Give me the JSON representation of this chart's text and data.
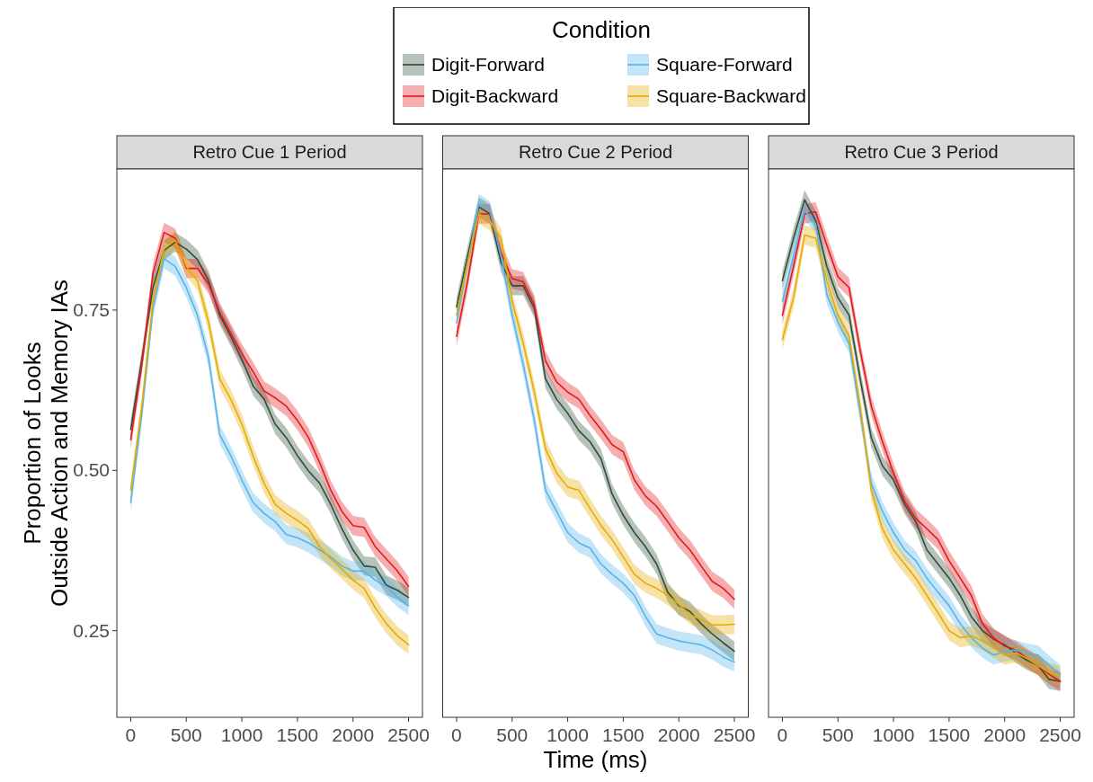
{
  "chart_data": [
    {
      "type": "line",
      "title": "Retro Cue 1 Period",
      "ylabel": "Proportion of Looks\nOutside Action and Memory IAs",
      "legend_title": "Condition",
      "legend": "top",
      "x": [
        0,
        100,
        200,
        300,
        400,
        500,
        600,
        700,
        800,
        900,
        1000,
        1100,
        1200,
        1300,
        1400,
        1500,
        1600,
        1700,
        1800,
        1900,
        2000,
        2100,
        2200,
        2300,
        2400,
        2500
      ],
      "xlim": [
        -125,
        2625
      ],
      "xticks": [
        0,
        500,
        1000,
        1500,
        2000,
        2500
      ],
      "ylim": [
        0.115,
        0.97
      ],
      "yticks": [
        {
          "value": 0.25,
          "label": "0.25"
        },
        {
          "value": 0.5,
          "label": "0.50"
        },
        {
          "value": 0.75,
          "label": "0.75"
        }
      ],
      "series": [
        {
          "name": "Digit-Forward",
          "color": "#2f4f3a",
          "values": [
            0.564,
            0.673,
            0.785,
            0.843,
            0.856,
            0.845,
            0.829,
            0.796,
            0.742,
            0.709,
            0.673,
            0.632,
            0.611,
            0.572,
            0.551,
            0.523,
            0.499,
            0.48,
            0.447,
            0.409,
            0.376,
            0.351,
            0.349,
            0.321,
            0.313,
            0.302
          ],
          "lower": [
            0.549,
            0.658,
            0.77,
            0.828,
            0.841,
            0.83,
            0.814,
            0.781,
            0.727,
            0.694,
            0.658,
            0.617,
            0.596,
            0.557,
            0.536,
            0.508,
            0.484,
            0.465,
            0.432,
            0.394,
            0.361,
            0.336,
            0.334,
            0.306,
            0.298,
            0.287
          ],
          "upper": [
            0.579,
            0.688,
            0.8,
            0.858,
            0.871,
            0.86,
            0.844,
            0.811,
            0.757,
            0.724,
            0.688,
            0.647,
            0.626,
            0.587,
            0.566,
            0.538,
            0.514,
            0.495,
            0.462,
            0.424,
            0.391,
            0.366,
            0.364,
            0.336,
            0.328,
            0.317
          ]
        },
        {
          "name": "Digit-Backward",
          "color": "#e31a1c",
          "values": [
            0.548,
            0.665,
            0.807,
            0.871,
            0.862,
            0.815,
            0.815,
            0.791,
            0.747,
            0.714,
            0.682,
            0.654,
            0.624,
            0.613,
            0.6,
            0.578,
            0.551,
            0.512,
            0.469,
            0.436,
            0.414,
            0.411,
            0.381,
            0.362,
            0.343,
            0.319
          ],
          "lower": [
            0.533,
            0.65,
            0.792,
            0.856,
            0.847,
            0.8,
            0.8,
            0.776,
            0.732,
            0.699,
            0.667,
            0.639,
            0.609,
            0.598,
            0.585,
            0.563,
            0.536,
            0.497,
            0.454,
            0.421,
            0.399,
            0.396,
            0.366,
            0.347,
            0.328,
            0.304
          ],
          "upper": [
            0.563,
            0.68,
            0.822,
            0.886,
            0.877,
            0.83,
            0.83,
            0.806,
            0.762,
            0.729,
            0.697,
            0.669,
            0.639,
            0.628,
            0.615,
            0.593,
            0.566,
            0.527,
            0.484,
            0.451,
            0.429,
            0.426,
            0.396,
            0.377,
            0.358,
            0.334
          ]
        },
        {
          "name": "Square-Forward",
          "color": "#56b4e9",
          "values": [
            0.45,
            0.589,
            0.753,
            0.83,
            0.818,
            0.785,
            0.742,
            0.676,
            0.556,
            0.523,
            0.485,
            0.45,
            0.433,
            0.42,
            0.4,
            0.395,
            0.387,
            0.376,
            0.365,
            0.351,
            0.343,
            0.343,
            0.329,
            0.319,
            0.302,
            0.289
          ],
          "lower": [
            0.435,
            0.574,
            0.738,
            0.815,
            0.803,
            0.77,
            0.727,
            0.661,
            0.541,
            0.508,
            0.47,
            0.435,
            0.418,
            0.405,
            0.385,
            0.38,
            0.372,
            0.361,
            0.35,
            0.336,
            0.328,
            0.328,
            0.314,
            0.304,
            0.287,
            0.274
          ],
          "upper": [
            0.465,
            0.604,
            0.768,
            0.845,
            0.833,
            0.8,
            0.757,
            0.691,
            0.571,
            0.538,
            0.5,
            0.465,
            0.448,
            0.435,
            0.415,
            0.41,
            0.402,
            0.391,
            0.38,
            0.366,
            0.358,
            0.358,
            0.344,
            0.334,
            0.317,
            0.304
          ]
        },
        {
          "name": "Square-Backward",
          "color": "#e6ab02",
          "values": [
            0.469,
            0.6,
            0.764,
            0.845,
            0.859,
            0.818,
            0.796,
            0.731,
            0.643,
            0.611,
            0.572,
            0.523,
            0.48,
            0.447,
            0.433,
            0.422,
            0.409,
            0.381,
            0.362,
            0.346,
            0.329,
            0.316,
            0.286,
            0.261,
            0.242,
            0.228
          ],
          "lower": [
            0.454,
            0.585,
            0.749,
            0.83,
            0.844,
            0.803,
            0.781,
            0.716,
            0.628,
            0.596,
            0.557,
            0.508,
            0.465,
            0.432,
            0.418,
            0.407,
            0.394,
            0.366,
            0.347,
            0.331,
            0.314,
            0.301,
            0.271,
            0.246,
            0.227,
            0.213
          ],
          "upper": [
            0.484,
            0.615,
            0.779,
            0.86,
            0.874,
            0.833,
            0.811,
            0.746,
            0.658,
            0.626,
            0.587,
            0.538,
            0.495,
            0.462,
            0.448,
            0.437,
            0.424,
            0.396,
            0.377,
            0.361,
            0.344,
            0.331,
            0.301,
            0.276,
            0.257,
            0.243
          ]
        }
      ]
    },
    {
      "type": "line",
      "title": "Retro Cue 2 Period",
      "xlabel": "Time (ms)",
      "tick_labels": "x",
      "x": [
        0,
        100,
        200,
        300,
        400,
        500,
        600,
        700,
        800,
        900,
        1000,
        1100,
        1200,
        1300,
        1400,
        1500,
        1600,
        1700,
        1800,
        1900,
        2000,
        2100,
        2200,
        2300,
        2400,
        2500
      ],
      "xlim": [
        -125,
        2625
      ],
      "xticks": [
        0,
        500,
        1000,
        1500,
        2000,
        2500
      ],
      "ylim": [
        0.115,
        0.97
      ],
      "series": [
        {
          "color": "#2f4f3a",
          "values": [
            0.755,
            0.835,
            0.911,
            0.9,
            0.824,
            0.788,
            0.788,
            0.753,
            0.643,
            0.611,
            0.589,
            0.562,
            0.545,
            0.518,
            0.463,
            0.43,
            0.403,
            0.381,
            0.354,
            0.31,
            0.289,
            0.28,
            0.261,
            0.245,
            0.231,
            0.218
          ],
          "lower": [
            0.74,
            0.82,
            0.896,
            0.885,
            0.809,
            0.773,
            0.773,
            0.738,
            0.628,
            0.596,
            0.574,
            0.547,
            0.53,
            0.503,
            0.448,
            0.415,
            0.388,
            0.366,
            0.339,
            0.295,
            0.274,
            0.265,
            0.246,
            0.23,
            0.216,
            0.203
          ],
          "upper": [
            0.77,
            0.85,
            0.926,
            0.915,
            0.839,
            0.803,
            0.803,
            0.768,
            0.658,
            0.626,
            0.604,
            0.577,
            0.56,
            0.533,
            0.478,
            0.445,
            0.418,
            0.396,
            0.369,
            0.325,
            0.304,
            0.295,
            0.276,
            0.26,
            0.246,
            0.233
          ]
        },
        {
          "color": "#e31a1c",
          "values": [
            0.709,
            0.796,
            0.9,
            0.9,
            0.84,
            0.799,
            0.794,
            0.758,
            0.671,
            0.638,
            0.622,
            0.611,
            0.586,
            0.564,
            0.54,
            0.529,
            0.485,
            0.46,
            0.444,
            0.42,
            0.395,
            0.376,
            0.351,
            0.327,
            0.316,
            0.299
          ],
          "lower": [
            0.694,
            0.781,
            0.885,
            0.885,
            0.825,
            0.784,
            0.779,
            0.743,
            0.656,
            0.623,
            0.607,
            0.596,
            0.571,
            0.549,
            0.525,
            0.514,
            0.47,
            0.445,
            0.429,
            0.405,
            0.38,
            0.361,
            0.336,
            0.312,
            0.301,
            0.284
          ],
          "upper": [
            0.724,
            0.811,
            0.915,
            0.915,
            0.855,
            0.814,
            0.809,
            0.773,
            0.686,
            0.653,
            0.637,
            0.626,
            0.601,
            0.579,
            0.555,
            0.544,
            0.5,
            0.475,
            0.459,
            0.435,
            0.41,
            0.391,
            0.366,
            0.342,
            0.331,
            0.314
          ]
        },
        {
          "color": "#56b4e9",
          "values": [
            0.73,
            0.824,
            0.916,
            0.905,
            0.835,
            0.742,
            0.665,
            0.578,
            0.469,
            0.436,
            0.403,
            0.387,
            0.379,
            0.354,
            0.338,
            0.324,
            0.305,
            0.272,
            0.245,
            0.239,
            0.234,
            0.231,
            0.228,
            0.22,
            0.209,
            0.201
          ],
          "lower": [
            0.727,
            0.809,
            0.901,
            0.89,
            0.82,
            0.727,
            0.65,
            0.563,
            0.454,
            0.421,
            0.388,
            0.372,
            0.364,
            0.339,
            0.323,
            0.309,
            0.29,
            0.257,
            0.23,
            0.224,
            0.219,
            0.216,
            0.213,
            0.205,
            0.194,
            0.186
          ],
          "upper": [
            0.757,
            0.839,
            0.931,
            0.92,
            0.85,
            0.757,
            0.68,
            0.593,
            0.484,
            0.451,
            0.418,
            0.402,
            0.394,
            0.369,
            0.353,
            0.339,
            0.32,
            0.287,
            0.26,
            0.254,
            0.249,
            0.246,
            0.243,
            0.235,
            0.224,
            0.216
          ]
        },
        {
          "color": "#e6ab02",
          "values": [
            0.742,
            0.824,
            0.9,
            0.889,
            0.862,
            0.764,
            0.698,
            0.622,
            0.534,
            0.496,
            0.474,
            0.469,
            0.441,
            0.414,
            0.392,
            0.365,
            0.338,
            0.324,
            0.316,
            0.305,
            0.291,
            0.275,
            0.267,
            0.259,
            0.259,
            0.26
          ],
          "lower": [
            0.727,
            0.809,
            0.885,
            0.874,
            0.847,
            0.749,
            0.683,
            0.607,
            0.519,
            0.481,
            0.459,
            0.454,
            0.426,
            0.399,
            0.377,
            0.35,
            0.323,
            0.309,
            0.301,
            0.29,
            0.276,
            0.26,
            0.252,
            0.244,
            0.244,
            0.245
          ],
          "upper": [
            0.757,
            0.839,
            0.915,
            0.904,
            0.877,
            0.779,
            0.713,
            0.637,
            0.549,
            0.511,
            0.489,
            0.484,
            0.456,
            0.429,
            0.407,
            0.38,
            0.353,
            0.339,
            0.331,
            0.32,
            0.306,
            0.29,
            0.282,
            0.274,
            0.274,
            0.275
          ]
        }
      ]
    },
    {
      "type": "line",
      "title": "Retro Cue 3 Period",
      "tick_labels": "x",
      "x": [
        0,
        100,
        200,
        300,
        400,
        500,
        600,
        700,
        800,
        900,
        1000,
        1100,
        1200,
        1300,
        1400,
        1500,
        1600,
        1700,
        1800,
        1900,
        2000,
        2100,
        2200,
        2300,
        2400,
        2500
      ],
      "xlim": [
        -125,
        2625
      ],
      "xticks": [
        0,
        500,
        1000,
        1500,
        2000,
        2500
      ],
      "ylim": [
        0.115,
        0.97
      ],
      "series": [
        {
          "color": "#2f4f3a",
          "values": [
            0.796,
            0.862,
            0.922,
            0.889,
            0.818,
            0.769,
            0.742,
            0.643,
            0.551,
            0.507,
            0.485,
            0.447,
            0.42,
            0.376,
            0.354,
            0.332,
            0.305,
            0.272,
            0.25,
            0.237,
            0.228,
            0.215,
            0.204,
            0.196,
            0.174,
            0.171
          ],
          "lower": [
            0.781,
            0.847,
            0.907,
            0.874,
            0.803,
            0.754,
            0.727,
            0.628,
            0.536,
            0.492,
            0.47,
            0.432,
            0.405,
            0.361,
            0.339,
            0.317,
            0.29,
            0.257,
            0.235,
            0.222,
            0.213,
            0.2,
            0.189,
            0.181,
            0.159,
            0.156
          ],
          "upper": [
            0.811,
            0.877,
            0.937,
            0.904,
            0.833,
            0.784,
            0.757,
            0.658,
            0.566,
            0.522,
            0.5,
            0.462,
            0.435,
            0.391,
            0.369,
            0.347,
            0.32,
            0.287,
            0.265,
            0.252,
            0.243,
            0.23,
            0.219,
            0.211,
            0.189,
            0.186
          ]
        },
        {
          "color": "#e31a1c",
          "values": [
            0.742,
            0.818,
            0.9,
            0.903,
            0.851,
            0.802,
            0.785,
            0.687,
            0.6,
            0.545,
            0.496,
            0.452,
            0.425,
            0.409,
            0.392,
            0.359,
            0.332,
            0.305,
            0.261,
            0.239,
            0.226,
            0.22,
            0.207,
            0.196,
            0.182,
            0.171
          ],
          "lower": [
            0.727,
            0.803,
            0.885,
            0.888,
            0.836,
            0.787,
            0.77,
            0.672,
            0.585,
            0.53,
            0.481,
            0.437,
            0.41,
            0.394,
            0.377,
            0.344,
            0.317,
            0.29,
            0.246,
            0.224,
            0.211,
            0.205,
            0.192,
            0.181,
            0.167,
            0.156
          ],
          "upper": [
            0.757,
            0.833,
            0.915,
            0.918,
            0.866,
            0.817,
            0.8,
            0.702,
            0.615,
            0.56,
            0.511,
            0.467,
            0.44,
            0.424,
            0.407,
            0.374,
            0.347,
            0.32,
            0.276,
            0.254,
            0.241,
            0.235,
            0.222,
            0.211,
            0.197,
            0.186
          ]
        },
        {
          "color": "#56b4e9",
          "values": [
            0.764,
            0.835,
            0.906,
            0.884,
            0.774,
            0.731,
            0.698,
            0.589,
            0.48,
            0.436,
            0.403,
            0.376,
            0.359,
            0.332,
            0.31,
            0.289,
            0.261,
            0.239,
            0.223,
            0.212,
            0.217,
            0.22,
            0.215,
            0.212,
            0.196,
            0.182
          ],
          "lower": [
            0.749,
            0.82,
            0.891,
            0.869,
            0.759,
            0.716,
            0.683,
            0.574,
            0.465,
            0.421,
            0.388,
            0.361,
            0.344,
            0.317,
            0.295,
            0.274,
            0.246,
            0.224,
            0.208,
            0.197,
            0.202,
            0.205,
            0.2,
            0.197,
            0.181,
            0.167
          ],
          "upper": [
            0.779,
            0.85,
            0.921,
            0.899,
            0.789,
            0.746,
            0.713,
            0.604,
            0.495,
            0.451,
            0.418,
            0.391,
            0.374,
            0.347,
            0.325,
            0.304,
            0.276,
            0.254,
            0.238,
            0.227,
            0.232,
            0.235,
            0.23,
            0.227,
            0.211,
            0.197
          ]
        },
        {
          "color": "#e6ab02",
          "values": [
            0.704,
            0.769,
            0.867,
            0.862,
            0.796,
            0.742,
            0.709,
            0.6,
            0.469,
            0.409,
            0.376,
            0.354,
            0.332,
            0.305,
            0.278,
            0.25,
            0.239,
            0.242,
            0.234,
            0.223,
            0.212,
            0.215,
            0.207,
            0.196,
            0.185,
            0.179
          ],
          "lower": [
            0.689,
            0.754,
            0.852,
            0.847,
            0.781,
            0.727,
            0.694,
            0.585,
            0.454,
            0.394,
            0.361,
            0.339,
            0.317,
            0.29,
            0.263,
            0.235,
            0.224,
            0.227,
            0.219,
            0.208,
            0.197,
            0.2,
            0.192,
            0.181,
            0.17,
            0.164
          ],
          "upper": [
            0.719,
            0.784,
            0.882,
            0.877,
            0.811,
            0.757,
            0.724,
            0.615,
            0.484,
            0.424,
            0.391,
            0.369,
            0.347,
            0.32,
            0.293,
            0.265,
            0.254,
            0.257,
            0.249,
            0.238,
            0.227,
            0.23,
            0.222,
            0.211,
            0.2,
            0.194
          ]
        }
      ]
    }
  ]
}
